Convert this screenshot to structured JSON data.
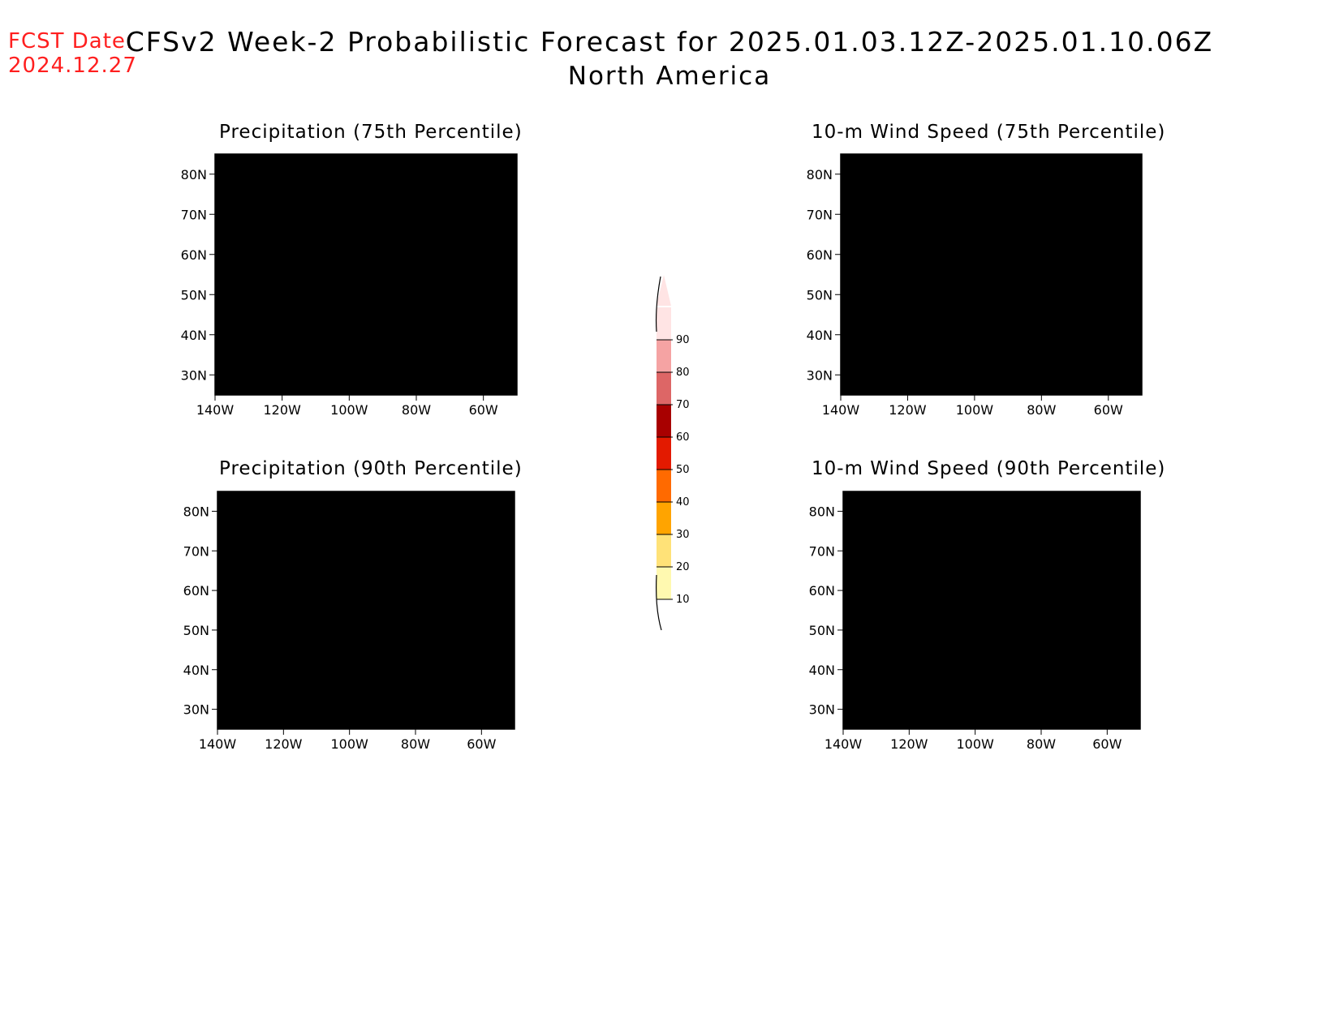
{
  "forecast_date": {
    "label": "FCST Date:",
    "value": "2024.12.27"
  },
  "title": {
    "line1": "CFSv2 Week-2 Probabilistic Forecast for 2025.01.03.12Z-2025.01.10.06Z",
    "line2": "North America"
  },
  "panels": [
    {
      "id": "precip75",
      "title": "Precipitation (75th Percentile)"
    },
    {
      "id": "wind75",
      "title": "10-m Wind Speed (75th Percentile)"
    },
    {
      "id": "precip90",
      "title": "Precipitation (90th Percentile)"
    },
    {
      "id": "wind90",
      "title": "10-m Wind Speed (90th Percentile)"
    }
  ],
  "axes": {
    "lat_labels": [
      "80N",
      "70N",
      "60N",
      "50N",
      "40N",
      "30N"
    ],
    "lon_labels": [
      "140W",
      "120W",
      "100W",
      "80W",
      "60W"
    ],
    "lat_values": [
      80,
      70,
      60,
      50,
      40,
      30
    ],
    "lon_values": [
      -140,
      -120,
      -100,
      -80,
      -60
    ],
    "lat_range": [
      25,
      85
    ],
    "lon_range": [
      -140,
      -50
    ]
  },
  "colorbar": {
    "labels": [
      "10",
      "20",
      "30",
      "40",
      "50",
      "60",
      "70",
      "80",
      "90"
    ],
    "colors": [
      "#fff9b0",
      "#ffe278",
      "#ffa400",
      "#ff6a00",
      "#e31a00",
      "#a80000",
      "#dd6666",
      "#f5a3a3",
      "#ffe4e4"
    ]
  }
}
